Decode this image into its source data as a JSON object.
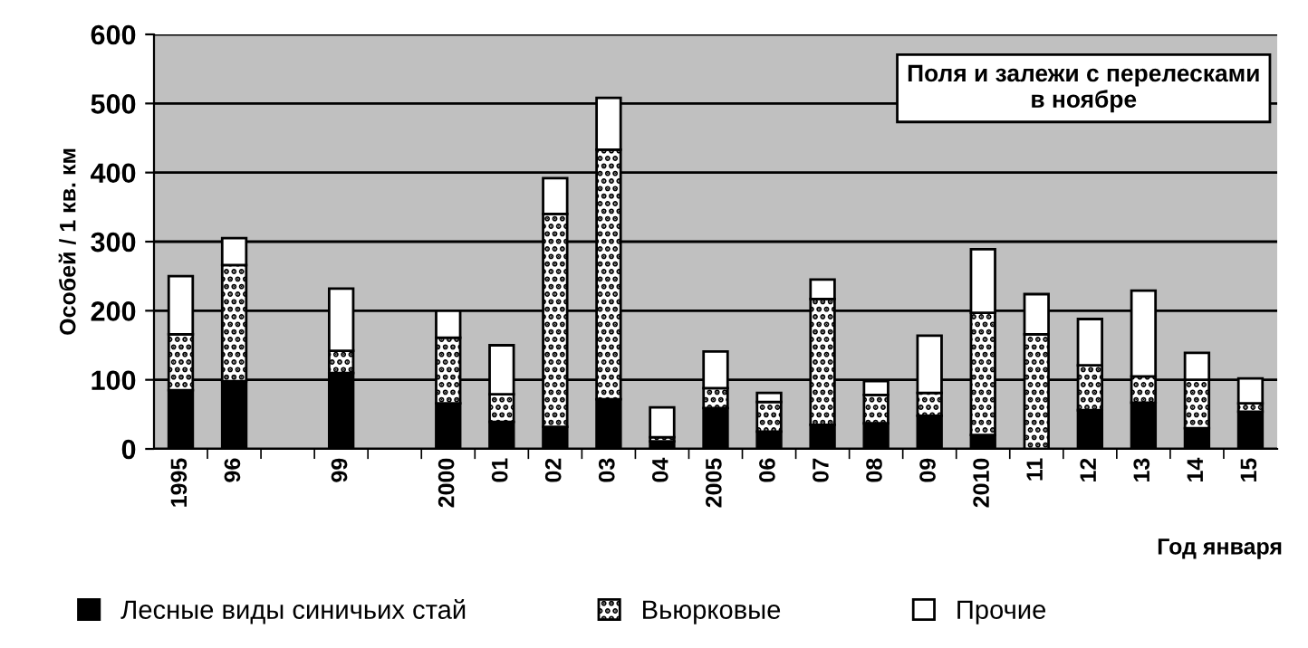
{
  "chart_data": {
    "type": "bar",
    "stacked": true,
    "categories": [
      "1995",
      "96",
      null,
      "99",
      null,
      "2000",
      "01",
      "02",
      "03",
      "04",
      "2005",
      "06",
      "07",
      "08",
      "09",
      "2010",
      "11",
      "12",
      "13",
      "14",
      "15"
    ],
    "series": [
      {
        "name": "Лесные виды синичьих стай",
        "color": "#000000",
        "values": [
          85,
          98,
          null,
          110,
          null,
          66,
          39,
          32,
          72,
          11,
          59,
          25,
          35,
          37,
          48,
          20,
          null,
          56,
          67,
          30,
          54
        ]
      },
      {
        "name": "Вьюрковые",
        "color": "#000000",
        "values": [
          81,
          168,
          null,
          32,
          null,
          95,
          40,
          308,
          361,
          6,
          29,
          43,
          182,
          41,
          33,
          177,
          166,
          65,
          38,
          70,
          12
        ]
      },
      {
        "name": "Прочие",
        "color": "#ffffff",
        "values": [
          84,
          39,
          null,
          90,
          null,
          39,
          71,
          52,
          75,
          43,
          53,
          13,
          28,
          20,
          83,
          92,
          58,
          67,
          124,
          39,
          36
        ]
      }
    ],
    "ylim": [
      0,
      600
    ],
    "yticks": [
      0,
      100,
      200,
      300,
      400,
      500,
      600
    ],
    "ylabel": "Особей / 1 кв. км",
    "xlabel": "Год января",
    "annotations": [
      "Поля и залежи с перелесками\nв ноябре"
    ],
    "grid": "y",
    "legend": "bottom"
  }
}
